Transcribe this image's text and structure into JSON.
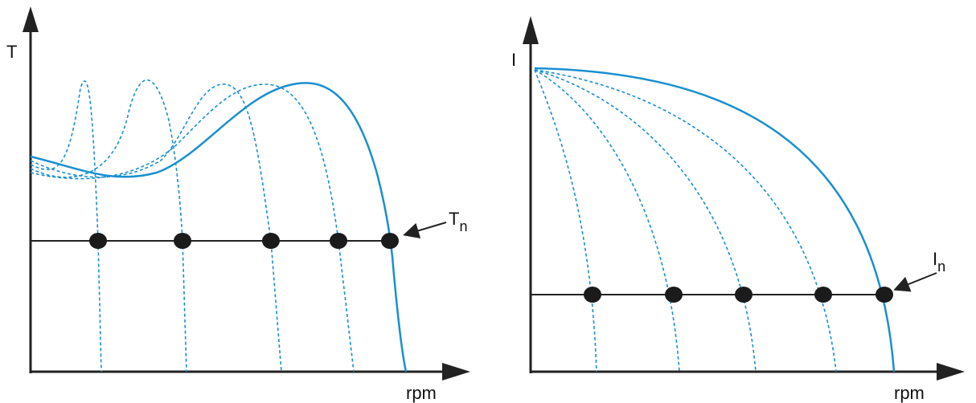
{
  "left": {
    "y_axis_label": "T",
    "x_axis_label": "rpm",
    "callout": {
      "main": "T",
      "subscript": "n"
    }
  },
  "right": {
    "y_axis_label": "I",
    "x_axis_label": "rpm",
    "callout": {
      "main": "I",
      "subscript": "n"
    }
  }
}
